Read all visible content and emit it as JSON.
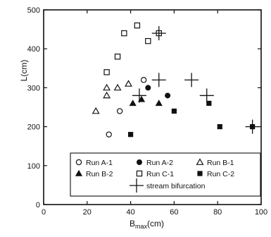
{
  "chart_data": {
    "type": "scatter",
    "xlabel_main": "B",
    "xlabel_sub": "max",
    "xlabel_unit": "(cm)",
    "ylabel": "L(cm)",
    "xlim": [
      0,
      100
    ],
    "ylim": [
      0,
      500
    ],
    "xticks": [
      0,
      20,
      40,
      60,
      80,
      100
    ],
    "yticks": [
      0,
      100,
      200,
      300,
      400,
      500
    ],
    "grid": false,
    "legend_position": "bottom-right",
    "series": [
      {
        "name": "Run A-1",
        "marker": "open-circle",
        "points": [
          [
            30,
            180
          ],
          [
            35,
            240
          ],
          [
            46,
            320
          ]
        ]
      },
      {
        "name": "Run A-2",
        "marker": "filled-circle",
        "points": [
          [
            48,
            300
          ],
          [
            57,
            280
          ]
        ]
      },
      {
        "name": "Run B-1",
        "marker": "open-triangle",
        "points": [
          [
            24,
            240
          ],
          [
            29,
            280
          ],
          [
            29,
            300
          ],
          [
            34,
            300
          ],
          [
            39,
            310
          ]
        ]
      },
      {
        "name": "Run B-2",
        "marker": "filled-triangle",
        "points": [
          [
            41,
            260
          ],
          [
            45,
            270
          ],
          [
            53,
            260
          ]
        ]
      },
      {
        "name": "Run C-1",
        "marker": "open-square",
        "points": [
          [
            29,
            340
          ],
          [
            34,
            380
          ],
          [
            37,
            440
          ],
          [
            43,
            460
          ],
          [
            48,
            420
          ],
          [
            53,
            440
          ]
        ]
      },
      {
        "name": "Run C-2",
        "marker": "filled-square",
        "points": [
          [
            40,
            180
          ],
          [
            60,
            240
          ],
          [
            76,
            260
          ],
          [
            81,
            200
          ],
          [
            96,
            200
          ]
        ]
      }
    ],
    "stream_bifurcation": {
      "name": "stream bifurcation",
      "points": [
        [
          44,
          280
        ],
        [
          53,
          320
        ],
        [
          53,
          440
        ],
        [
          68,
          320
        ],
        [
          75,
          280
        ],
        [
          96,
          200
        ]
      ]
    }
  }
}
